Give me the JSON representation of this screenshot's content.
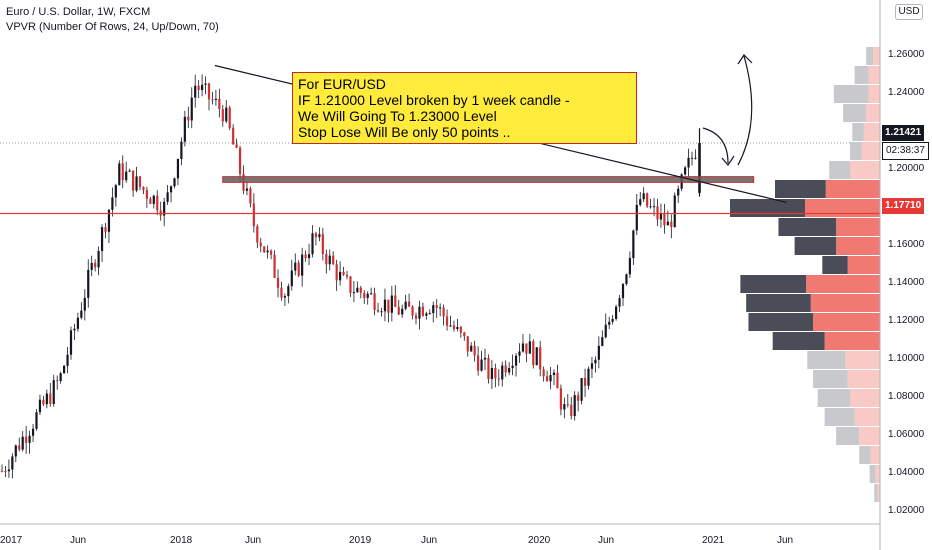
{
  "header": {
    "symbol_line": "Euro / U.S. Dollar, 1W, FXCM",
    "indicator_line": "VPVR (Number Of Rows, 24, Up/Down, 70)"
  },
  "currency_button": "USD",
  "price_tags": {
    "last": "1.21421",
    "countdown": "02:38:37",
    "line_level": "1.17710"
  },
  "annotation": {
    "lines": [
      "For  EUR/USD",
      "IF  1.21000 Level  broken by 1 week candle -",
      "We Will Going To 1.23000 Level",
      "Stop Lose Will Be  only 50 points .."
    ]
  },
  "colors": {
    "up": "#26a69a",
    "candle": "#131722",
    "down_accent": "#d32f2f",
    "zone": "#5d5d5d",
    "hline": "#e53935",
    "vol_up_dark": "#4a4d57",
    "vol_up_light": "#c8c9cc",
    "vol_down_dark": "#f07a72",
    "vol_down_light": "#f9c9c5",
    "note_bg": "#ffeb3b"
  },
  "chart_data": {
    "type": "candlestick",
    "title": "Euro / U.S. Dollar, 1W, FXCM",
    "x_tick_labels": [
      "2017",
      "Jun",
      "2018",
      "Jun",
      "2019",
      "Jun",
      "2020",
      "Jun",
      "2021",
      "Jun"
    ],
    "y_tick_labels": [
      "1.02000",
      "1.04000",
      "1.06000",
      "1.08000",
      "1.10000",
      "1.12000",
      "1.14000",
      "1.16000",
      "1.18000",
      "1.20000",
      "1.22000",
      "1.24000",
      "1.26000"
    ],
    "ylim": [
      1.0096,
      1.2752
    ],
    "price_path": [
      {
        "x": "2017",
        "y": 1.04
      },
      {
        "x": "2017-05",
        "y": 1.09
      },
      {
        "x": "2017-09",
        "y": 1.2
      },
      {
        "x": "2017-12",
        "y": 1.18
      },
      {
        "x": "2018-02",
        "y": 1.245
      },
      {
        "x": "2018-04",
        "y": 1.23
      },
      {
        "x": "2018-06",
        "y": 1.17
      },
      {
        "x": "2018-08",
        "y": 1.135
      },
      {
        "x": "2018-10",
        "y": 1.165
      },
      {
        "x": "2018-12",
        "y": 1.14
      },
      {
        "x": "2019-04",
        "y": 1.125
      },
      {
        "x": "2019-06",
        "y": 1.13
      },
      {
        "x": "2019-08",
        "y": 1.11
      },
      {
        "x": "2019-10",
        "y": 1.09
      },
      {
        "x": "2019-12",
        "y": 1.11
      },
      {
        "x": "2020-02",
        "y": 1.09
      },
      {
        "x": "2020-03",
        "y": 1.07
      },
      {
        "x": "2020-05",
        "y": 1.1
      },
      {
        "x": "2020-07",
        "y": 1.145
      },
      {
        "x": "2020-08",
        "y": 1.185
      },
      {
        "x": "2020-10",
        "y": 1.17
      },
      {
        "x": "2020-11",
        "y": 1.195
      },
      {
        "x": "2020-12",
        "y": 1.214
      }
    ],
    "horizontal_line": 1.1771,
    "resistance_zone": [
      1.1935,
      1.1965
    ],
    "trendline": [
      {
        "x": "2018-02",
        "y": 1.255
      },
      {
        "x": "2021-06",
        "y": 1.183
      }
    ],
    "last_price": 1.21421,
    "volume_profile": [
      {
        "price": 1.26,
        "up": 6,
        "down": 6
      },
      {
        "price": 1.25,
        "up": 12,
        "down": 10
      },
      {
        "price": 1.24,
        "up": 30,
        "down": 10
      },
      {
        "price": 1.23,
        "up": 20,
        "down": 12
      },
      {
        "price": 1.22,
        "up": 10,
        "down": 14
      },
      {
        "price": 1.21,
        "up": 10,
        "down": 16
      },
      {
        "price": 1.2,
        "up": 18,
        "down": 26
      },
      {
        "price": 1.19,
        "up": 44,
        "down": 47
      },
      {
        "price": 1.18,
        "up": 65,
        "down": 65
      },
      {
        "price": 1.17,
        "up": 50,
        "down": 38
      },
      {
        "price": 1.16,
        "up": 36,
        "down": 38
      },
      {
        "price": 1.15,
        "up": 22,
        "down": 28
      },
      {
        "price": 1.14,
        "up": 57,
        "down": 64
      },
      {
        "price": 1.13,
        "up": 56,
        "down": 60
      },
      {
        "price": 1.12,
        "up": 56,
        "down": 58
      },
      {
        "price": 1.11,
        "up": 45,
        "down": 48
      },
      {
        "price": 1.1,
        "up": 33,
        "down": 30
      },
      {
        "price": 1.09,
        "up": 30,
        "down": 28
      },
      {
        "price": 1.08,
        "up": 28,
        "down": 26
      },
      {
        "price": 1.07,
        "up": 26,
        "down": 22
      },
      {
        "price": 1.06,
        "up": 20,
        "down": 18
      },
      {
        "price": 1.05,
        "up": 10,
        "down": 8
      },
      {
        "price": 1.04,
        "up": 5,
        "down": 4
      },
      {
        "price": 1.03,
        "up": 3,
        "down": 2
      }
    ]
  }
}
